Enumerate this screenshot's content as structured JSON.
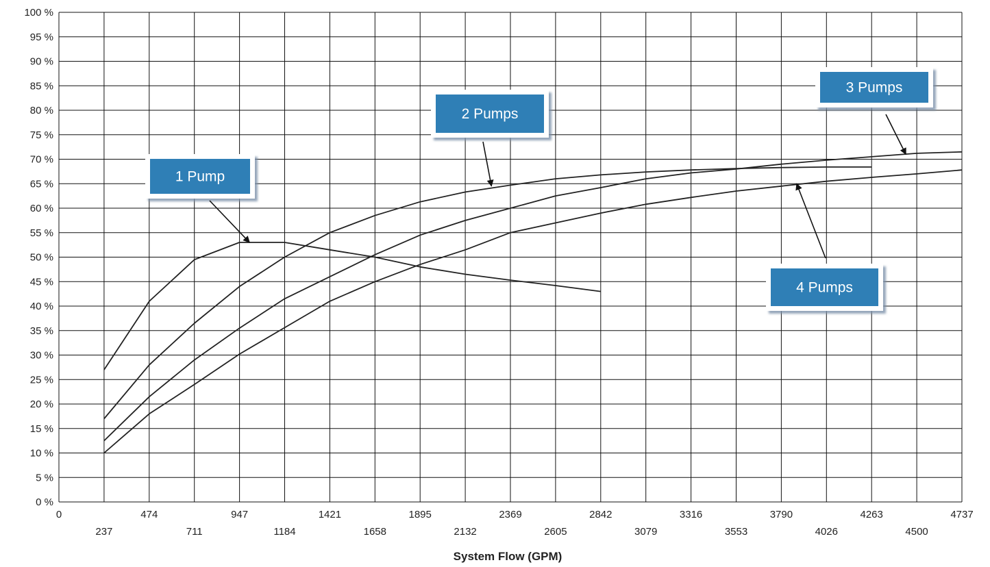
{
  "chart_data": {
    "type": "line",
    "xlabel": "System Flow (GPM)",
    "ylabel": "",
    "xlim": [
      0,
      4737
    ],
    "ylim": [
      0,
      100
    ],
    "grid": true,
    "x_ticks_upper": [
      "0",
      "474",
      "947",
      "1421",
      "1895",
      "2369",
      "2842",
      "3316",
      "3790",
      "4263",
      "4737"
    ],
    "x_ticks_lower": [
      "237",
      "711",
      "1184",
      "1658",
      "2132",
      "2605",
      "3079",
      "3553",
      "4026",
      "4500"
    ],
    "y_ticks": [
      "0 %",
      "5 %",
      "10 %",
      "15 %",
      "20 %",
      "25 %",
      "30 %",
      "35 %",
      "40 %",
      "45 %",
      "50 %",
      "55 %",
      "60 %",
      "65 %",
      "70 %",
      "75 %",
      "80 %",
      "85 %",
      "90 %",
      "95 %",
      "100 %"
    ],
    "series": [
      {
        "name": "1 Pump",
        "x": [
          237,
          474,
          711,
          947,
          1184,
          1421,
          1658,
          1895,
          2132,
          2369,
          2605,
          2842
        ],
        "y": [
          27,
          41,
          49.5,
          53,
          53,
          51.5,
          50,
          48,
          46.5,
          45.3,
          44.2,
          43
        ]
      },
      {
        "name": "2 Pumps",
        "x": [
          237,
          474,
          711,
          947,
          1184,
          1421,
          1658,
          1895,
          2132,
          2369,
          2605,
          2842,
          3079,
          3316,
          3553,
          3790,
          4026,
          4263
        ],
        "y": [
          17,
          28,
          36.5,
          44,
          50,
          55,
          58.5,
          61.3,
          63.3,
          64.7,
          66,
          66.8,
          67.4,
          67.8,
          68.1,
          68.3,
          68.4,
          68.4
        ]
      },
      {
        "name": "3 Pumps",
        "x": [
          237,
          474,
          711,
          947,
          1184,
          1421,
          1658,
          1895,
          2132,
          2369,
          2605,
          2842,
          3079,
          3316,
          3553,
          3790,
          4026,
          4263,
          4500,
          4737
        ],
        "y": [
          12.5,
          21.5,
          29,
          35.5,
          41.5,
          46,
          50.5,
          54.5,
          57.5,
          60,
          62.5,
          64.2,
          66,
          67.2,
          68,
          69,
          69.8,
          70.5,
          71.2,
          71.5
        ]
      },
      {
        "name": "4 Pumps",
        "x": [
          237,
          474,
          711,
          947,
          1184,
          1421,
          1658,
          1895,
          2132,
          2369,
          2605,
          2842,
          3079,
          3316,
          3553,
          3790,
          4026,
          4263,
          4500,
          4737
        ],
        "y": [
          10,
          18,
          24,
          30.2,
          35.6,
          41,
          45,
          48.5,
          51.5,
          55,
          57,
          59,
          60.8,
          62.2,
          63.5,
          64.5,
          65.5,
          66.3,
          67,
          67.8
        ]
      }
    ],
    "annotations": [
      {
        "label": "1 Pump",
        "target": [
          1000,
          53
        ]
      },
      {
        "label": "2 Pumps",
        "target": [
          2269,
          64.5
        ]
      },
      {
        "label": "3 Pumps",
        "target": [
          4443,
          71
        ]
      },
      {
        "label": "4 Pumps",
        "target": [
          3870,
          65
        ]
      }
    ]
  }
}
